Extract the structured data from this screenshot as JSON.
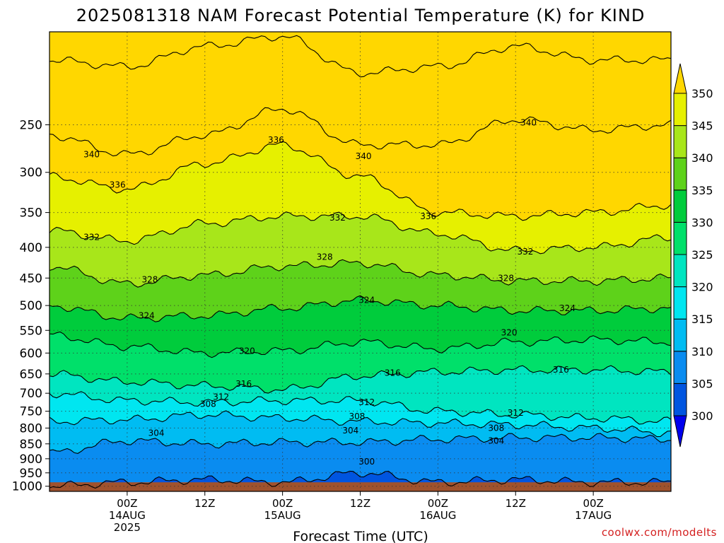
{
  "chart_data": {
    "type": "area",
    "title": "2025081318 NAM Forecast Potential Temperature (K) for KIND",
    "xlabel": "Forecast Time (UTC)",
    "ylabel": "",
    "credit": "coolwx.com/modelts",
    "y_scale": "log",
    "y_inverted": true,
    "ylim": [
      1020,
      175
    ],
    "y_ticks": [
      250,
      300,
      350,
      400,
      450,
      500,
      550,
      600,
      650,
      700,
      750,
      800,
      850,
      900,
      950,
      1000
    ],
    "xlim": [
      -12,
      84
    ],
    "x_ticks": [
      {
        "hour": 0,
        "lines": [
          "00Z",
          "14AUG",
          "2025"
        ]
      },
      {
        "hour": 12,
        "lines": [
          "12Z"
        ]
      },
      {
        "hour": 24,
        "lines": [
          "00Z",
          "15AUG"
        ]
      },
      {
        "hour": 36,
        "lines": [
          "12Z"
        ]
      },
      {
        "hour": 48,
        "lines": [
          "00Z",
          "16AUG"
        ]
      },
      {
        "hour": 60,
        "lines": [
          "12Z"
        ]
      },
      {
        "hour": 72,
        "lines": [
          "00Z",
          "17AUG"
        ]
      }
    ],
    "grid": true,
    "ground_level_hpa": 985,
    "colorbar": {
      "placement": "right",
      "levels": [
        300,
        305,
        310,
        315,
        320,
        325,
        330,
        335,
        340,
        345,
        350
      ],
      "colors": [
        "#0000ee",
        "#0055e0",
        "#0a8cf0",
        "#00bcf2",
        "#00e6f0",
        "#00e5c0",
        "#00e06a",
        "#00cc3c",
        "#5ed21a",
        "#a8e61a",
        "#e6f000",
        "#ffd700"
      ]
    },
    "ground_color": "#a0522d",
    "series": [
      {
        "name": "300",
        "x": [
          -12,
          0,
          12,
          24,
          36,
          48,
          60,
          72,
          84
        ],
        "y": [
          1000,
          985,
          975,
          985,
          950,
          985,
          975,
          985,
          985
        ]
      },
      {
        "name": "304",
        "x": [
          -12,
          0,
          12,
          24,
          36,
          48,
          60,
          72,
          84
        ],
        "y": [
          880,
          840,
          850,
          845,
          845,
          835,
          830,
          830,
          835
        ]
      },
      {
        "name": "308",
        "x": [
          -12,
          0,
          12,
          24,
          36,
          48,
          60,
          72,
          84
        ],
        "y": [
          780,
          775,
          760,
          770,
          780,
          785,
          790,
          800,
          815
        ]
      },
      {
        "name": "312",
        "x": [
          -12,
          0,
          12,
          24,
          36,
          48,
          60,
          72,
          84
        ],
        "y": [
          700,
          720,
          725,
          720,
          720,
          750,
          760,
          770,
          780
        ]
      },
      {
        "name": "316",
        "x": [
          -12,
          0,
          12,
          24,
          36,
          48,
          60,
          72,
          84
        ],
        "y": [
          650,
          670,
          680,
          690,
          655,
          645,
          640,
          640,
          645
        ]
      },
      {
        "name": "320",
        "x": [
          -12,
          0,
          12,
          24,
          36,
          48,
          60,
          72,
          84
        ],
        "y": [
          560,
          585,
          600,
          595,
          575,
          590,
          575,
          570,
          575
        ]
      },
      {
        "name": "324",
        "x": [
          -12,
          0,
          12,
          24,
          36,
          48,
          60,
          72,
          84
        ],
        "y": [
          500,
          525,
          520,
          505,
          490,
          500,
          510,
          510,
          505
        ]
      },
      {
        "name": "328",
        "x": [
          -12,
          0,
          12,
          24,
          36,
          48,
          60,
          72,
          84
        ],
        "y": [
          430,
          460,
          445,
          430,
          425,
          445,
          455,
          455,
          450
        ]
      },
      {
        "name": "332",
        "x": [
          -12,
          0,
          12,
          24,
          36,
          48,
          60,
          72,
          84
        ],
        "y": [
          375,
          390,
          365,
          355,
          355,
          380,
          405,
          400,
          385
        ]
      },
      {
        "name": "336",
        "x": [
          -12,
          0,
          12,
          24,
          36,
          48,
          60,
          72,
          84
        ],
        "y": [
          305,
          320,
          290,
          270,
          305,
          350,
          355,
          350,
          340
        ]
      },
      {
        "name": "340",
        "x": [
          -12,
          0,
          12,
          24,
          36,
          48,
          60,
          72,
          84
        ],
        "y": [
          260,
          280,
          260,
          235,
          270,
          270,
          245,
          255,
          250
        ]
      },
      {
        "name": "345",
        "x": [
          -12,
          0,
          12,
          24,
          36,
          48,
          60,
          72,
          84
        ],
        "y": [
          195,
          200,
          185,
          178,
          205,
          200,
          185,
          195,
          195
        ]
      }
    ],
    "contour_labels": [
      {
        "text": "340",
        "x": -5.5,
        "y": 280
      },
      {
        "text": "336",
        "x": -1.5,
        "y": 315
      },
      {
        "text": "332",
        "x": -5.5,
        "y": 385
      },
      {
        "text": "328",
        "x": 3.5,
        "y": 453
      },
      {
        "text": "324",
        "x": 3.0,
        "y": 520
      },
      {
        "text": "320",
        "x": 18.5,
        "y": 595
      },
      {
        "text": "316",
        "x": 18.0,
        "y": 675
      },
      {
        "text": "312",
        "x": 14.5,
        "y": 710
      },
      {
        "text": "308",
        "x": 12.5,
        "y": 730
      },
      {
        "text": "304",
        "x": 4.5,
        "y": 815
      },
      {
        "text": "336",
        "x": 23.0,
        "y": 265
      },
      {
        "text": "340",
        "x": 36.5,
        "y": 282
      },
      {
        "text": "332",
        "x": 32.5,
        "y": 357
      },
      {
        "text": "328",
        "x": 30.5,
        "y": 415
      },
      {
        "text": "324",
        "x": 37.0,
        "y": 490
      },
      {
        "text": "316",
        "x": 41.0,
        "y": 648
      },
      {
        "text": "312",
        "x": 37.0,
        "y": 725
      },
      {
        "text": "308",
        "x": 35.5,
        "y": 765
      },
      {
        "text": "304",
        "x": 34.5,
        "y": 808
      },
      {
        "text": "300",
        "x": 37.0,
        "y": 910
      },
      {
        "text": "336",
        "x": 46.5,
        "y": 355
      },
      {
        "text": "340",
        "x": 62.0,
        "y": 248
      },
      {
        "text": "332",
        "x": 61.5,
        "y": 407
      },
      {
        "text": "328",
        "x": 58.5,
        "y": 450
      },
      {
        "text": "324",
        "x": 68.0,
        "y": 505
      },
      {
        "text": "320",
        "x": 59.0,
        "y": 555
      },
      {
        "text": "316",
        "x": 67.0,
        "y": 640
      },
      {
        "text": "312",
        "x": 60.0,
        "y": 755
      },
      {
        "text": "308",
        "x": 57.0,
        "y": 800
      },
      {
        "text": "304",
        "x": 57.0,
        "y": 840
      }
    ]
  }
}
